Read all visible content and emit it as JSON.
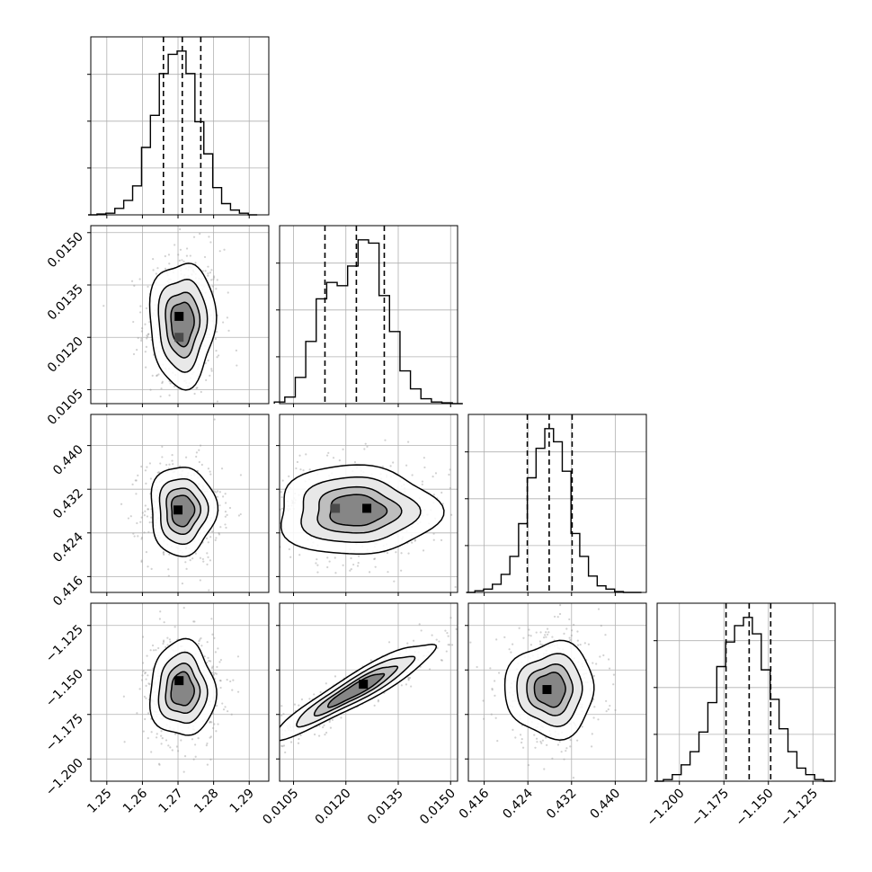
{
  "chart_data": {
    "type": "corner",
    "grid": true,
    "parameters": [
      {
        "ticks": [
          "1.25",
          "1.26",
          "1.27",
          "1.28",
          "1.29"
        ],
        "tick_values": [
          1.25,
          1.26,
          1.27,
          1.28,
          1.29
        ],
        "range": [
          1.2455,
          1.2955
        ],
        "quantiles": [
          1.2659,
          1.2712,
          1.2764
        ],
        "hist_x": [
          1.246,
          1.2485,
          1.251,
          1.2535,
          1.256,
          1.2585,
          1.261,
          1.2635,
          1.266,
          1.2685,
          1.271,
          1.2735,
          1.276,
          1.2785,
          1.281,
          1.2835,
          1.286,
          1.2885,
          1.291
        ],
        "hist_y": [
          0,
          0.005,
          0.01,
          0.04,
          0.09,
          0.18,
          0.42,
          0.62,
          0.88,
          1.0,
          1.02,
          0.88,
          0.58,
          0.38,
          0.17,
          0.07,
          0.03,
          0.01,
          0
        ]
      },
      {
        "ticks": [
          "0.0105",
          "0.0120",
          "0.0135",
          "0.0150"
        ],
        "tick_values": [
          0.0105,
          0.012,
          0.0135,
          0.015
        ],
        "range": [
          0.0101,
          0.0152
        ],
        "quantiles": [
          0.0114,
          0.0123,
          0.0131
        ],
        "hist_x": [
          0.0101,
          0.0104,
          0.0107,
          0.011,
          0.0113,
          0.0116,
          0.0119,
          0.0122,
          0.0125,
          0.0128,
          0.0131,
          0.0134,
          0.0137,
          0.014,
          0.0143,
          0.0146,
          0.0149,
          0.0152
        ],
        "hist_y": [
          0.01,
          0.04,
          0.16,
          0.38,
          0.64,
          0.74,
          0.72,
          0.84,
          1.0,
          0.98,
          0.66,
          0.44,
          0.2,
          0.09,
          0.03,
          0.01,
          0.005,
          0
        ]
      },
      {
        "ticks": [
          "0.416",
          "0.424",
          "0.432",
          "0.440"
        ],
        "tick_values": [
          0.416,
          0.424,
          0.432,
          0.44
        ],
        "range": [
          0.4131,
          0.4457
        ],
        "quantiles": [
          0.4239,
          0.4279,
          0.4321
        ],
        "hist_x": [
          0.4135,
          0.4151,
          0.4167,
          0.4183,
          0.4199,
          0.4215,
          0.4231,
          0.4247,
          0.4263,
          0.4279,
          0.4295,
          0.4311,
          0.4327,
          0.4343,
          0.4359,
          0.4375,
          0.4391,
          0.4407,
          0.4423,
          0.444
        ],
        "hist_y": [
          0,
          0.01,
          0.02,
          0.05,
          0.11,
          0.22,
          0.42,
          0.7,
          0.88,
          1.0,
          0.92,
          0.74,
          0.36,
          0.22,
          0.1,
          0.04,
          0.02,
          0.005,
          0,
          0
        ]
      },
      {
        "ticks": [
          "−1.200",
          "−1.175",
          "−1.150",
          "−1.125"
        ],
        "tick_values": [
          -1.2,
          -1.175,
          -1.15,
          -1.125
        ],
        "range": [
          -1.2125,
          -1.1125
        ],
        "quantiles": [
          -1.1738,
          -1.1608,
          -1.1487
        ],
        "hist_x": [
          -1.2115,
          -1.2065,
          -1.2015,
          -1.1965,
          -1.1915,
          -1.1865,
          -1.1815,
          -1.1765,
          -1.1715,
          -1.1665,
          -1.1615,
          -1.1565,
          -1.1515,
          -1.1465,
          -1.1415,
          -1.1365,
          -1.1315,
          -1.1265,
          -1.1215,
          -1.1165
        ],
        "hist_y": [
          0,
          0.01,
          0.04,
          0.1,
          0.18,
          0.3,
          0.48,
          0.7,
          0.85,
          0.95,
          1.0,
          0.9,
          0.68,
          0.5,
          0.32,
          0.18,
          0.08,
          0.04,
          0.01,
          0
        ]
      }
    ],
    "pairs": [
      {
        "row": 1,
        "col": 0,
        "mean": [
          1.2712,
          0.0124
        ],
        "sd": [
          0.0036,
          0.0007
        ],
        "rho": 0.0,
        "density_mode": [
          1.2703,
          0.0126
        ],
        "bimodal_offset": [
          0.0,
          0.0006
        ]
      },
      {
        "row": 2,
        "col": 0,
        "mean": [
          1.2712,
          0.4281
        ],
        "sd": [
          0.0036,
          0.0032
        ],
        "rho": 0.0,
        "density_mode": [
          1.27,
          0.4282
        ]
      },
      {
        "row": 2,
        "col": 1,
        "mean": [
          0.0123,
          0.4281
        ],
        "sd": [
          0.0009,
          0.0032
        ],
        "rho": 0.0,
        "density_mode": [
          0.0126,
          0.4285
        ],
        "bimodal_offset": [
          0.0009,
          0.0
        ]
      },
      {
        "row": 3,
        "col": 0,
        "mean": [
          1.2712,
          -1.161
        ],
        "sd": [
          0.0036,
          0.0105
        ],
        "rho": 0.0,
        "density_mode": [
          1.2703,
          -1.156
        ]
      },
      {
        "row": 3,
        "col": 1,
        "mean": [
          0.0123,
          -1.161
        ],
        "sd": [
          0.0009,
          0.0105
        ],
        "rho": 0.93,
        "density_mode": [
          0.0125,
          -1.158
        ]
      },
      {
        "row": 3,
        "col": 2,
        "mean": [
          0.4281,
          -1.161
        ],
        "sd": [
          0.0032,
          0.0105
        ],
        "rho": 0.0,
        "density_mode": [
          0.4275,
          -1.161
        ]
      }
    ],
    "contour_levels": [
      0.118,
      0.393,
      0.675,
      0.865
    ],
    "colors": {
      "axes": "#000000",
      "grid": "#b0b0b0",
      "contour": "#000000",
      "scatter": "#9a9a9a",
      "density_dark": "#000000",
      "density_light": "#f4f4f4"
    }
  }
}
